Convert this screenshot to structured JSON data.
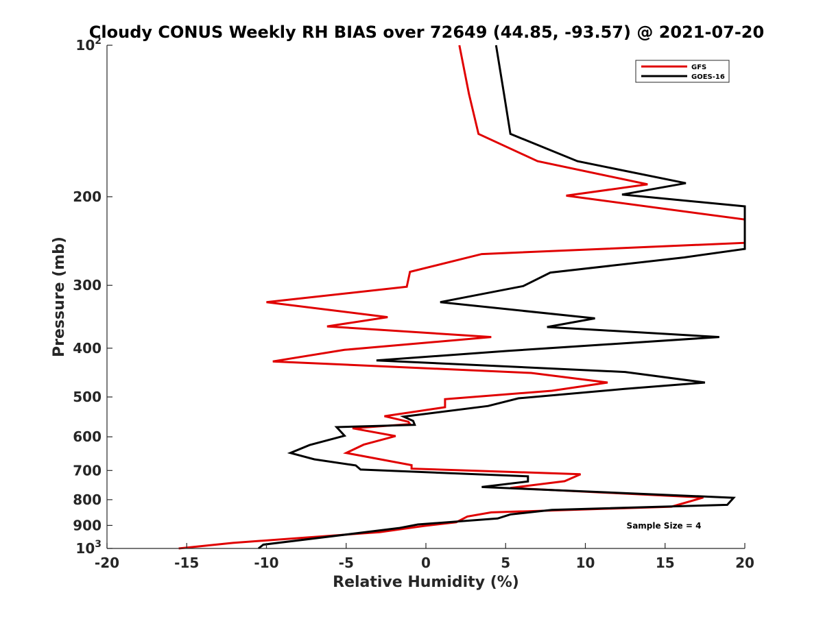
{
  "chart_data": {
    "type": "line",
    "title": "Cloudy CONUS Weekly RH BIAS over 72649 (44.85, -93.57) @ 2021-07-20",
    "xlabel": "Relative Humidity (%)",
    "ylabel": "Pressure (mb)",
    "xlim": [
      -20,
      20
    ],
    "ylim": [
      100,
      1000
    ],
    "y_scale": "log",
    "y_reversed": true,
    "x_ticks": [
      "-20",
      "-15",
      "-10",
      "-5",
      "0",
      "5",
      "10",
      "15",
      "20"
    ],
    "y_ticks": [
      {
        "value": 100,
        "label": "10",
        "sup": "2"
      },
      {
        "value": 200,
        "label": "200"
      },
      {
        "value": 300,
        "label": "300"
      },
      {
        "value": 400,
        "label": "400"
      },
      {
        "value": 500,
        "label": "500"
      },
      {
        "value": 600,
        "label": "600"
      },
      {
        "value": 700,
        "label": "700"
      },
      {
        "value": 800,
        "label": "800"
      },
      {
        "value": 900,
        "label": "900"
      },
      {
        "value": 1000,
        "label": "10",
        "sup": "3"
      }
    ],
    "legend_position": "top-right",
    "grid": false,
    "annotation": "Sample Size = 4",
    "series": [
      {
        "name": "GFS",
        "color": "#e00000",
        "points": [
          [
            2.1,
            100
          ],
          [
            2.7,
            125
          ],
          [
            3.3,
            150
          ],
          [
            7.0,
            170
          ],
          [
            13.9,
            189
          ],
          [
            8.8,
            199
          ],
          [
            20.0,
            222
          ],
          [
            20.0,
            247
          ],
          [
            3.5,
            260
          ],
          [
            -1.0,
            282
          ],
          [
            -1.2,
            302
          ],
          [
            -10.0,
            324
          ],
          [
            -2.4,
            347
          ],
          [
            -6.2,
            362
          ],
          [
            4.1,
            380
          ],
          [
            -5.1,
            403
          ],
          [
            -9.6,
            425
          ],
          [
            6.6,
            448
          ],
          [
            11.4,
            468
          ],
          [
            7.9,
            486
          ],
          [
            1.2,
            505
          ],
          [
            1.2,
            524
          ],
          [
            -2.6,
            546
          ],
          [
            -1.1,
            560
          ],
          [
            -1.0,
            566
          ],
          [
            -4.6,
            577
          ],
          [
            -1.9,
            598
          ],
          [
            -3.9,
            622
          ],
          [
            -5.0,
            646
          ],
          [
            -0.9,
            683
          ],
          [
            -0.9,
            694
          ],
          [
            9.7,
            712
          ],
          [
            8.7,
            735
          ],
          [
            5.3,
            758
          ],
          [
            17.4,
            792
          ],
          [
            15.4,
            826
          ],
          [
            4.1,
            848
          ],
          [
            2.6,
            864
          ],
          [
            1.9,
            887
          ],
          [
            -0.1,
            902
          ],
          [
            -1.3,
            913
          ],
          [
            -2.9,
            928
          ],
          [
            -12.1,
            975
          ],
          [
            -15.5,
            1000
          ]
        ]
      },
      {
        "name": "GOES-16",
        "color": "#000000",
        "points": [
          [
            4.4,
            100
          ],
          [
            4.9,
            125
          ],
          [
            5.3,
            150
          ],
          [
            9.5,
            170
          ],
          [
            16.3,
            188
          ],
          [
            12.3,
            198
          ],
          [
            20.0,
            209
          ],
          [
            20.0,
            254
          ],
          [
            16.2,
            264
          ],
          [
            7.8,
            283
          ],
          [
            6.1,
            301
          ],
          [
            0.9,
            324
          ],
          [
            10.6,
            349
          ],
          [
            7.6,
            363
          ],
          [
            18.4,
            380
          ],
          [
            5.1,
            405
          ],
          [
            -3.1,
            423
          ],
          [
            12.5,
            446
          ],
          [
            17.5,
            468
          ],
          [
            12.4,
            482
          ],
          [
            5.8,
            503
          ],
          [
            3.9,
            521
          ],
          [
            -1.4,
            547
          ],
          [
            -0.8,
            558
          ],
          [
            -0.7,
            568
          ],
          [
            -5.6,
            574
          ],
          [
            -5.1,
            597
          ],
          [
            -7.3,
            623
          ],
          [
            -8.5,
            646
          ],
          [
            -7.0,
            665
          ],
          [
            -4.4,
            684
          ],
          [
            -4.1,
            697
          ],
          [
            6.4,
            719
          ],
          [
            6.4,
            736
          ],
          [
            3.5,
            755
          ],
          [
            19.3,
            793
          ],
          [
            18.9,
            819
          ],
          [
            7.9,
            838
          ],
          [
            5.3,
            856
          ],
          [
            4.5,
            872
          ],
          [
            -0.5,
            896
          ],
          [
            -1.7,
            911
          ],
          [
            -10.2,
            983
          ],
          [
            -10.5,
            1000
          ]
        ]
      }
    ]
  }
}
